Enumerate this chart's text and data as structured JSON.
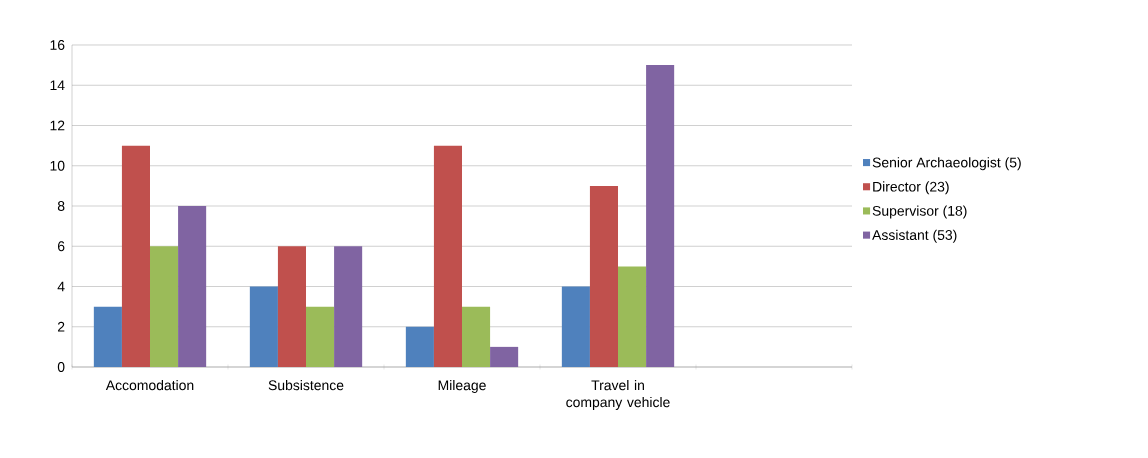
{
  "chart_data": {
    "type": "bar",
    "categories": [
      "Accomodation",
      "Subsistence",
      "Mileage",
      "Travel in company vehicle",
      null
    ],
    "series": [
      {
        "name": "Senior Archaeologist (5)",
        "color": "#4f81bd",
        "values": [
          3,
          4,
          2,
          4,
          null
        ]
      },
      {
        "name": "Director (23)",
        "color": "#c0504d",
        "values": [
          11,
          6,
          11,
          9,
          null
        ]
      },
      {
        "name": "Supervisor (18)",
        "color": "#9bbb59",
        "values": [
          6,
          3,
          3,
          5,
          null
        ]
      },
      {
        "name": "Assistant (53)",
        "color": "#8064a2",
        "values": [
          8,
          6,
          1,
          15,
          null
        ]
      }
    ],
    "ylim": [
      0,
      16
    ],
    "yticks": [
      0,
      2,
      4,
      6,
      8,
      10,
      12,
      14,
      16
    ],
    "grid": "y",
    "legend": "right"
  }
}
